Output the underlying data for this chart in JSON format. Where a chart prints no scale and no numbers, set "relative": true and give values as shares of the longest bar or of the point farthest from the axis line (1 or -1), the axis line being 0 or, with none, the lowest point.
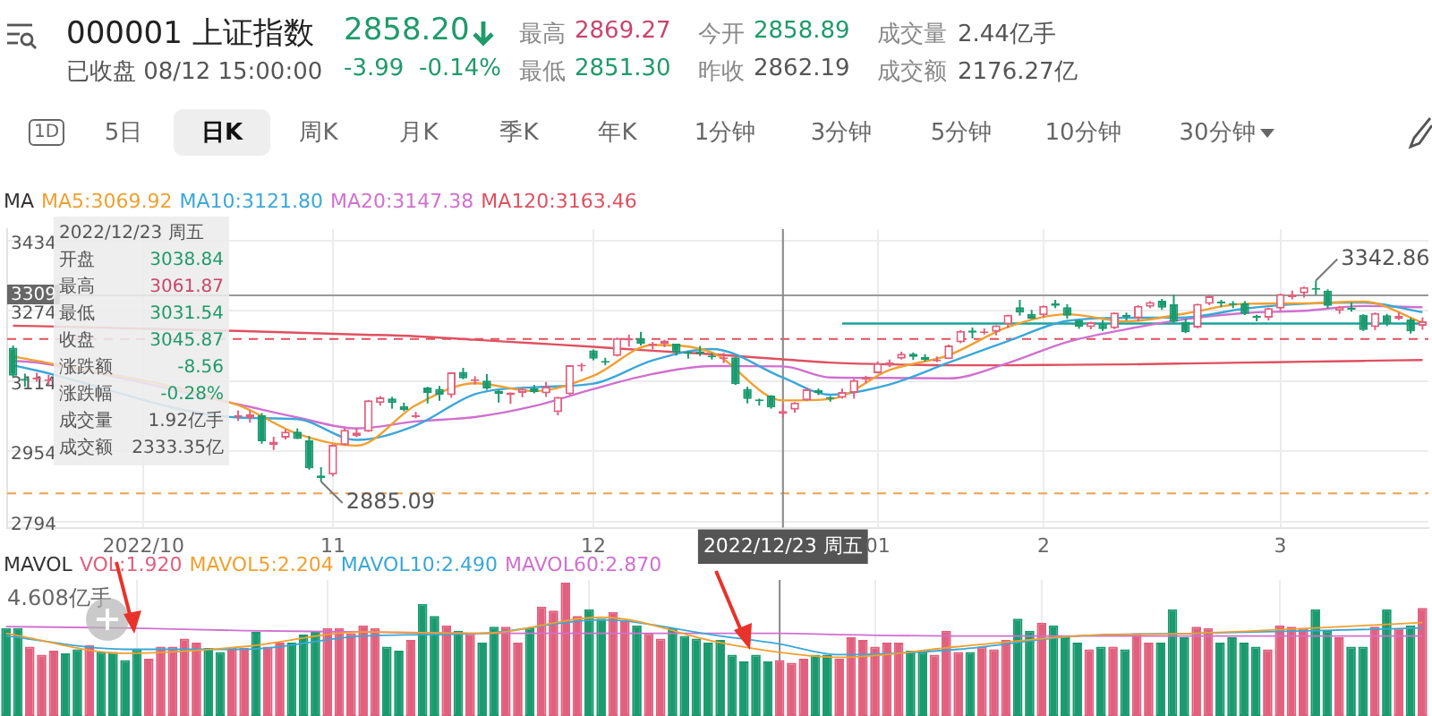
{
  "chart_data": [
    {
      "type": "other",
      "title": "000001 上证指数",
      "annotations": [
        "2858.20",
        "已收盘 08/12 15:00:00",
        "-3.99",
        "-0.14%",
        "最高",
        "2869.27",
        "最低",
        "2851.30",
        "今开",
        "2858.89",
        "昨收",
        "2862.19",
        "成交量",
        "2.44亿手",
        "成交额",
        "2176.27亿",
        "1D",
        "5日",
        "日K",
        "周K",
        "月K",
        "季K",
        "年K",
        "1分钟",
        "3分钟",
        "5分钟",
        "10分钟",
        "30分钟"
      ]
    },
    {
      "type": "candlestick",
      "legend_title": "MA",
      "legend": "top left",
      "grid": true,
      "categories": [
        null,
        null,
        null,
        null,
        null,
        null,
        null,
        null,
        null,
        null,
        null,
        "2022/10",
        null,
        null,
        null,
        null,
        null,
        null,
        null,
        null,
        null,
        null,
        null,
        null,
        null,
        null,
        null,
        "11",
        null,
        null,
        null,
        null,
        null,
        null,
        null,
        null,
        null,
        null,
        null,
        null,
        null,
        null,
        null,
        null,
        null,
        null,
        null,
        null,
        null,
        "12",
        null,
        null,
        null,
        null,
        null,
        null,
        null,
        null,
        null,
        null,
        null,
        null,
        null,
        null,
        null,
        "2022/12/23 周五",
        null,
        null,
        null,
        null,
        null,
        null,
        null,
        "01",
        null,
        null,
        null,
        null,
        null,
        null,
        null,
        null,
        null,
        null,
        null,
        null,
        null,
        "2",
        null,
        null,
        null,
        null,
        null,
        null,
        null,
        null,
        null,
        null,
        null,
        null,
        null,
        null,
        null,
        null,
        null,
        null,
        null,
        "3",
        null,
        null,
        null,
        null,
        null,
        null,
        null,
        null,
        null,
        null,
        null,
        null
      ],
      "ohlc": [
        [
          3190,
          3195,
          3122,
          3126
        ],
        [
          3116,
          3131,
          3101,
          3115
        ],
        [
          3117,
          3133,
          3112,
          3122
        ],
        [
          3114,
          3128,
          3105,
          3117
        ],
        null,
        null,
        null,
        null,
        null,
        null,
        null,
        null,
        null,
        null,
        null,
        null,
        null,
        null,
        null,
        [
          3032,
          3047,
          3023,
          3035
        ],
        [
          3030,
          3047,
          3019,
          3038
        ],
        [
          3036,
          3041,
          2971,
          2977
        ],
        [
          2968,
          2987,
          2957,
          2976
        ],
        [
          2985,
          3004,
          2981,
          2999
        ],
        [
          2999,
          3006,
          2982,
          2982
        ],
        [
          2979,
          2989,
          2912,
          2915
        ],
        [
          2899,
          2918,
          2885.09,
          2893
        ],
        [
          2901,
          2970,
          2897,
          2969
        ],
        [
          2968,
          3006,
          2967,
          3003
        ],
        [
          2989,
          3008,
          2986,
          2997
        ],
        [
          2999,
          3071,
          2998,
          3070
        ],
        [
          3064,
          3080,
          3058,
          3077
        ],
        [
          3074,
          3078,
          3051,
          3064
        ],
        [
          3057,
          3065,
          3045,
          3048
        ],
        [
          3032,
          3044,
          3029,
          3036
        ],
        [
          3099,
          3101,
          3063,
          3087
        ],
        [
          3096,
          3103,
          3069,
          3083
        ],
        [
          3082,
          3134,
          3076,
          3134
        ],
        [
          3135,
          3144,
          3118,
          3120
        ],
        [
          3114,
          3125,
          3106,
          3115
        ],
        [
          3115,
          3130,
          3094,
          3097
        ],
        [
          3092,
          3093,
          3065,
          3085
        ],
        [
          3082,
          3088,
          3062,
          3088
        ],
        [
          3087,
          3100,
          3077,
          3096
        ],
        [
          3097,
          3105,
          3086,
          3089
        ],
        [
          3086,
          3112,
          3078,
          3101
        ],
        [
          3043,
          3078,
          3036,
          3078
        ],
        [
          3084,
          3150,
          3082,
          3150
        ],
        [
          3147,
          3155,
          3136,
          3151
        ],
        [
          3184,
          3186,
          3161,
          3165
        ],
        [
          3160,
          3167,
          3150,
          3156
        ],
        [
          3171,
          3213,
          3170,
          3212
        ],
        [
          3206,
          3220,
          3192,
          3212
        ],
        [
          3212,
          3226,
          3195,
          3199
        ],
        [
          3195,
          3203,
          3186,
          3197
        ],
        [
          3198,
          3208,
          3191,
          3206
        ],
        [
          3199,
          3199,
          3172,
          3179
        ],
        [
          3180,
          3182,
          3165,
          3176
        ],
        [
          3182,
          3194,
          3171,
          3176
        ],
        [
          3172,
          3178,
          3163,
          3168
        ],
        [
          3164,
          3178,
          3155,
          3167
        ],
        [
          3168,
          3168,
          3105,
          3107
        ],
        [
          3096,
          3101,
          3063,
          3073
        ],
        [
          3070,
          3074,
          3058,
          3068
        ],
        [
          3081,
          3082,
          3051,
          3054
        ],
        [
          3038.84,
          3061.87,
          3031.54,
          3045.87
        ],
        [
          3049,
          3066,
          3042,
          3065
        ],
        [
          3070,
          3098,
          3069,
          3095
        ],
        [
          3093,
          3097,
          3082,
          3087
        ],
        [
          3077,
          3080,
          3067,
          3073
        ],
        [
          3076,
          3097,
          3074,
          3089
        ],
        [
          3087,
          3119,
          3074,
          3116
        ],
        [
          3117,
          3126,
          3109,
          3123
        ],
        [
          3132,
          3159,
          3131,
          3155
        ],
        [
          3149,
          3163,
          3146,
          3157
        ],
        [
          3165,
          3181,
          3163,
          3176
        ],
        [
          3176,
          3179,
          3162,
          3169
        ],
        [
          3169,
          3175,
          3159,
          3162
        ],
        [
          3159,
          3170,
          3157,
          3163
        ],
        [
          3164,
          3197,
          3164,
          3195
        ],
        [
          3202,
          3230,
          3200,
          3228
        ],
        [
          3229,
          3236,
          3211,
          3224
        ],
        [
          3223,
          3234,
          3220,
          3225
        ],
        [
          3226,
          3241,
          3218,
          3241
        ],
        [
          3243,
          3265,
          3235,
          3265
        ],
        [
          3282,
          3299,
          3263,
          3270
        ],
        [
          3267,
          3276,
          3255,
          3256
        ],
        [
          3264,
          3286,
          3259,
          3285
        ],
        [
          3291,
          3299,
          3280,
          3285
        ],
        [
          3282,
          3289,
          3256,
          3263
        ],
        [
          3252,
          3253,
          3233,
          3238
        ],
        [
          3237,
          3249,
          3232,
          3248
        ],
        [
          3245,
          3253,
          3228,
          3232
        ],
        [
          3234,
          3270,
          3232,
          3270
        ],
        [
          3265,
          3270,
          3252,
          3260
        ],
        [
          3257,
          3287,
          3250,
          3285
        ],
        [
          3283,
          3296,
          3280,
          3294
        ],
        [
          3297,
          3301,
          3276,
          3281
        ],
        [
          3289,
          3310,
          3246,
          3249
        ],
        [
          3249,
          3256,
          3223,
          3225
        ],
        [
          3236,
          3290,
          3234,
          3290
        ],
        [
          3290,
          3310,
          3287,
          3307
        ],
        [
          3295,
          3299,
          3283,
          3291
        ],
        [
          3289,
          3296,
          3280,
          3287
        ],
        [
          3291,
          3296,
          3264,
          3267
        ],
        [
          3263,
          3265,
          3250,
          3258
        ],
        [
          3258,
          3281,
          3252,
          3280
        ],
        [
          3279,
          3313,
          3274,
          3312
        ],
        [
          3305,
          3320,
          3300,
          3311
        ],
        [
          3314,
          3329,
          3304,
          3328
        ],
        [
          3326,
          3342.86,
          3310,
          3322
        ],
        [
          3320,
          3323,
          3280,
          3285
        ],
        [
          3274,
          3285,
          3267,
          3283
        ],
        [
          3281,
          3293,
          3272,
          3276
        ],
        [
          3265,
          3266,
          3228,
          3230
        ],
        [
          3237,
          3270,
          3230,
          3269
        ],
        [
          3264,
          3267,
          3239,
          3245
        ],
        [
          3255,
          3270,
          3253,
          3263
        ],
        [
          3254,
          3258,
          3222,
          3227
        ],
        [
          3240,
          3259,
          3231,
          3250
        ]
      ],
      "series": [
        {
          "type": "line",
          "name": "MA5:3069.92",
          "color": "#f0a030",
          "values": [
            3170,
            null,
            3160,
            null,
            null,
            null,
            null,
            null,
            null,
            null,
            null,
            null,
            null,
            null,
            null,
            null,
            null,
            null,
            null,
            3059,
            null,
            null,
            null,
            null,
            2994,
            null,
            null,
            null,
            null,
            2967,
            null,
            null,
            null,
            null,
            3059,
            null,
            null,
            null,
            null,
            3109,
            null,
            null,
            null,
            null,
            3091,
            null,
            null,
            null,
            null,
            3126,
            null,
            null,
            null,
            null,
            3196,
            null,
            null,
            null,
            null,
            3179,
            null,
            null,
            null,
            null,
            null,
            3069.92,
            null,
            null,
            null,
            3073,
            null,
            null,
            null,
            null,
            3139,
            null,
            null,
            null,
            null,
            3173,
            null,
            null,
            null,
            null,
            3237,
            null,
            null,
            null,
            null,
            3266,
            null,
            null,
            null,
            null,
            3250,
            null,
            null,
            null,
            null,
            3268,
            null,
            null,
            null,
            null,
            3290,
            null,
            null,
            null,
            null,
            3291,
            null,
            null,
            null,
            null,
            3295,
            null,
            null,
            null,
            null,
            3247
          ]
        },
        {
          "type": "line",
          "name": "MA10:3121.80",
          "color": "#3aa7d8",
          "values": [
            3150,
            null,
            3138,
            null,
            null,
            null,
            null,
            null,
            null,
            null,
            null,
            null,
            null,
            null,
            null,
            null,
            null,
            null,
            null,
            3031,
            null,
            null,
            null,
            null,
            3027,
            null,
            null,
            null,
            null,
            2980,
            null,
            null,
            null,
            null,
            3013,
            null,
            null,
            null,
            null,
            3084,
            null,
            null,
            null,
            null,
            3100,
            null,
            null,
            null,
            null,
            3108,
            null,
            null,
            null,
            null,
            3161,
            null,
            null,
            null,
            null,
            3187,
            null,
            null,
            null,
            null,
            null,
            3121.8,
            null,
            null,
            null,
            3083,
            null,
            null,
            null,
            null,
            3106,
            null,
            null,
            null,
            null,
            3156,
            null,
            null,
            null,
            null,
            3205,
            null,
            null,
            null,
            null,
            3251,
            null,
            null,
            null,
            null,
            3258,
            null,
            null,
            null,
            null,
            3259,
            null,
            null,
            null,
            null,
            3279,
            null,
            null,
            null,
            null,
            3290,
            null,
            null,
            null,
            null,
            3293,
            null,
            null,
            null,
            null,
            3271
          ]
        },
        {
          "type": "line",
          "name": "MA20:3147.38",
          "color": "#d070d0",
          "values": [
            3160,
            null,
            3156,
            null,
            null,
            null,
            null,
            null,
            null,
            null,
            null,
            null,
            null,
            null,
            null,
            null,
            null,
            null,
            null,
            3061,
            null,
            null,
            null,
            null,
            3031,
            null,
            null,
            null,
            null,
            3006,
            null,
            null,
            null,
            null,
            3022,
            null,
            null,
            null,
            null,
            3032,
            null,
            null,
            null,
            null,
            3057,
            null,
            null,
            null,
            null,
            3096,
            null,
            null,
            null,
            null,
            3130,
            null,
            null,
            null,
            null,
            3148,
            null,
            null,
            null,
            null,
            null,
            3147.38,
            null,
            null,
            null,
            3122,
            null,
            null,
            null,
            null,
            3121,
            null,
            null,
            null,
            null,
            3120,
            null,
            null,
            null,
            null,
            3155,
            null,
            null,
            null,
            null,
            3203,
            null,
            null,
            null,
            null,
            3232,
            null,
            null,
            null,
            null,
            3255,
            null,
            null,
            null,
            null,
            3269,
            null,
            null,
            null,
            null,
            3274,
            null,
            null,
            null,
            null,
            3285,
            null,
            null,
            null,
            null,
            3282
          ]
        },
        {
          "type": "line",
          "name": "MA120:3163.46",
          "color": "#e05060",
          "values": [
            3240,
            null,
            3239,
            null,
            null,
            null,
            null,
            null,
            null,
            null,
            null,
            null,
            null,
            null,
            null,
            null,
            null,
            null,
            null,
            3228,
            null,
            null,
            null,
            null,
            3224,
            null,
            null,
            null,
            null,
            3220,
            null,
            null,
            null,
            null,
            3216,
            null,
            null,
            null,
            null,
            3208,
            null,
            null,
            null,
            null,
            3200,
            null,
            null,
            null,
            null,
            3192,
            null,
            null,
            null,
            null,
            3183,
            null,
            null,
            null,
            null,
            3175,
            null,
            null,
            null,
            null,
            null,
            3163.46,
            null,
            null,
            null,
            3156,
            null,
            null,
            null,
            null,
            3152,
            null,
            null,
            null,
            null,
            3150,
            null,
            null,
            null,
            null,
            3150,
            null,
            null,
            null,
            null,
            3151,
            null,
            null,
            null,
            null,
            3152,
            null,
            null,
            null,
            null,
            3154,
            null,
            null,
            null,
            null,
            3156,
            null,
            null,
            null,
            null,
            3158,
            null,
            null,
            null,
            null,
            3160,
            null,
            null,
            null,
            null,
            3162
          ]
        },
        {
          "type": "line",
          "color": "#1aa39a",
          "values": [
            null,
            null,
            null,
            null,
            null,
            null,
            null,
            null,
            null,
            null,
            null,
            null,
            null,
            null,
            null,
            null,
            null,
            null,
            null,
            null,
            null,
            null,
            null,
            null,
            null,
            null,
            null,
            null,
            null,
            null,
            null,
            null,
            null,
            null,
            null,
            null,
            null,
            null,
            null,
            null,
            null,
            null,
            null,
            null,
            null,
            null,
            null,
            null,
            null,
            null,
            null,
            null,
            null,
            null,
            null,
            null,
            null,
            null,
            null,
            null,
            null,
            null,
            null,
            null,
            null,
            null,
            null,
            null,
            null,
            null,
            3245,
            null,
            null,
            null,
            null,
            null,
            null,
            null,
            null,
            null,
            null,
            null,
            null,
            null,
            null,
            null,
            null,
            null,
            null,
            null,
            null,
            null,
            null,
            null,
            null,
            null,
            null,
            null,
            null,
            null,
            null,
            null,
            null,
            null,
            null,
            null,
            null,
            null,
            null,
            null,
            null,
            null,
            null,
            null,
            null,
            null,
            null,
            null,
            null,
            3245
          ]
        }
      ],
      "ylim": [
        2780,
        3460
      ],
      "yticks": [
        2794,
        2954,
        3114,
        3274,
        3434
      ],
      "ref_lines": [
        {
          "axis": "y",
          "value": 3309,
          "label": "3309",
          "color": "#999999"
        },
        {
          "axis": "y",
          "value": 3210,
          "color": "#e05060",
          "line_style": "dashed"
        },
        {
          "axis": "y",
          "value": 2858,
          "color": "#f0a050",
          "line_style": "dashed"
        },
        {
          "axis": "x",
          "value": "2022/12/23 周五",
          "color": "#888888"
        }
      ],
      "annotations": [
        "2022/12/23 周五",
        "开盘",
        "3038.84",
        "最高",
        "3061.87",
        "最低",
        "3031.54",
        "收盘",
        "3045.87",
        "涨跌额",
        "-8.56",
        "涨跌幅",
        "-0.28%",
        "成交量",
        "1.92亿手",
        "成交额",
        "2333.35亿",
        "3342.86",
        "2885.09"
      ]
    },
    {
      "type": "bar",
      "legend_title": "MAVOL",
      "legend": "top left",
      "relative": true,
      "grid": "x",
      "tick_labels": false,
      "categories": [
        null,
        null,
        null,
        null,
        null,
        null,
        null,
        null,
        null,
        null,
        null,
        "2022/10",
        null,
        null,
        null,
        null,
        null,
        null,
        null,
        null,
        null,
        null,
        null,
        null,
        null,
        null,
        null,
        "11",
        null,
        null,
        null,
        null,
        null,
        null,
        null,
        null,
        null,
        null,
        null,
        null,
        null,
        null,
        null,
        null,
        null,
        null,
        null,
        null,
        null,
        "12",
        null,
        null,
        null,
        null,
        null,
        null,
        null,
        null,
        null,
        null,
        null,
        null,
        null,
        null,
        null,
        "2022/12/23 周五",
        null,
        null,
        null,
        null,
        null,
        null,
        null,
        "01",
        null,
        null,
        null,
        null,
        null,
        null,
        null,
        null,
        null,
        null,
        null,
        null,
        null,
        "2",
        null,
        null,
        null,
        null,
        null,
        null,
        null,
        null,
        null,
        null,
        null,
        null,
        null,
        null,
        null,
        null,
        null,
        null,
        null,
        "3",
        null,
        null,
        null,
        null,
        null,
        null,
        null,
        null,
        null,
        null,
        null,
        null
      ],
      "series": [
        {
          "type": "bar",
          "name": "VOL:1.920",
          "color": "#e0607e",
          "values": [
            0.66,
            0.66,
            0.52,
            0.46,
            0.49,
            0.47,
            0.5,
            0.53,
            0.48,
            0.48,
            0.42,
            0.5,
            0.43,
            0.52,
            0.52,
            0.58,
            0.55,
            0.51,
            0.48,
            0.51,
            0.51,
            0.63,
            0.52,
            0.55,
            0.55,
            0.61,
            0.63,
            0.66,
            0.66,
            0.62,
            0.68,
            0.66,
            0.52,
            0.49,
            0.57,
            0.84,
            0.75,
            0.68,
            0.64,
            0.62,
            0.55,
            0.67,
            0.67,
            0.55,
            0.66,
            0.82,
            0.79,
            1,
            0.75,
            0.8,
            0.73,
            0.78,
            0.72,
            0.68,
            0.62,
            0.58,
            0.66,
            0.6,
            0.58,
            0.55,
            0.57,
            0.46,
            0.41,
            0.46,
            0.41,
            0.42,
            0.4,
            0.43,
            0.46,
            0.46,
            0.43,
            0.59,
            0.57,
            0.52,
            0.55,
            0.55,
            0.49,
            0.48,
            0.46,
            0.64,
            0.48,
            0.48,
            0.52,
            0.5,
            0.57,
            0.73,
            0.64,
            0.7,
            0.68,
            0.59,
            0.55,
            0.5,
            0.52,
            0.52,
            0.5,
            0.62,
            0.55,
            0.55,
            0.8,
            0.59,
            0.67,
            0.66,
            0.55,
            0.59,
            0.55,
            0.52,
            0.5,
            0.68,
            0.67,
            0.66,
            0.8,
            0.64,
            0.59,
            0.52,
            0.52,
            0.67,
            0.8,
            0.66,
            0.68,
            0.81
          ],
          "colors": [
            "#1a9a6e",
            "#1a9a6e",
            "#e0607e",
            "#e0607e",
            "#e0607e",
            "#1a9a6e",
            "#1a9a6e",
            "#e0607e",
            "#1a9a6e",
            "#1a9a6e",
            "#1a9a6e",
            "#1a9a6e",
            "#e0607e",
            "#e0607e",
            "#e0607e",
            "#e0607e",
            "#e0607e",
            "#1a9a6e",
            "#1a9a6e",
            "#e0607e",
            "#e0607e",
            "#1a9a6e",
            "#e0607e",
            "#e0607e",
            "#1a9a6e",
            "#1a9a6e",
            "#1a9a6e",
            "#e0607e",
            "#e0607e",
            "#e0607e",
            "#e0607e",
            "#e0607e",
            "#1a9a6e",
            "#1a9a6e",
            "#e0607e",
            "#1a9a6e",
            "#1a9a6e",
            "#e0607e",
            "#1a9a6e",
            "#e0607e",
            "#1a9a6e",
            "#1a9a6e",
            "#e0607e",
            "#e0607e",
            "#1a9a6e",
            "#e0607e",
            "#e0607e",
            "#e0607e",
            "#e0607e",
            "#1a9a6e",
            "#1a9a6e",
            "#e0607e",
            "#e0607e",
            "#1a9a6e",
            "#e0607e",
            "#e0607e",
            "#1a9a6e",
            "#1a9a6e",
            "#1a9a6e",
            "#1a9a6e",
            "#1a9a6e",
            "#1a9a6e",
            "#1a9a6e",
            "#1a9a6e",
            "#1a9a6e",
            "#e0607e",
            "#e0607e",
            "#e0607e",
            "#1a9a6e",
            "#1a9a6e",
            "#e0607e",
            "#e0607e",
            "#e0607e",
            "#e0607e",
            "#e0607e",
            "#e0607e",
            "#1a9a6e",
            "#1a9a6e",
            "#e0607e",
            "#e0607e",
            "#e0607e",
            "#1a9a6e",
            "#e0607e",
            "#e0607e",
            "#e0607e",
            "#1a9a6e",
            "#1a9a6e",
            "#e0607e",
            "#1a9a6e",
            "#1a9a6e",
            "#1a9a6e",
            "#e0607e",
            "#1a9a6e",
            "#e0607e",
            "#1a9a6e",
            "#e0607e",
            "#e0607e",
            "#1a9a6e",
            "#1a9a6e",
            "#1a9a6e",
            "#e0607e",
            "#e0607e",
            "#1a9a6e",
            "#1a9a6e",
            "#1a9a6e",
            "#1a9a6e",
            "#e0607e",
            "#e0607e",
            "#e0607e",
            "#e0607e",
            "#1a9a6e",
            "#1a9a6e",
            "#e0607e",
            "#1a9a6e",
            "#1a9a6e",
            "#e0607e",
            "#1a9a6e",
            "#e0607e",
            "#1a9a6e",
            "#e0607e"
          ]
        },
        {
          "type": "line",
          "name": "MAVOL5:2.204",
          "color": "#f0a030",
          "values": [
            0.62,
            null,
            null,
            null,
            null,
            null,
            null,
            null,
            null,
            null,
            0.47,
            null,
            null,
            null,
            null,
            null,
            null,
            null,
            null,
            null,
            0.52,
            null,
            null,
            null,
            null,
            null,
            null,
            null,
            null,
            null,
            0.63,
            null,
            null,
            null,
            null,
            null,
            null,
            null,
            null,
            null,
            0.62,
            null,
            null,
            null,
            null,
            null,
            null,
            null,
            null,
            null,
            0.74,
            null,
            null,
            null,
            null,
            null,
            null,
            null,
            null,
            null,
            0.55,
            null,
            null,
            null,
            null,
            0.478,
            null,
            null,
            null,
            null,
            0.44,
            null,
            null,
            null,
            null,
            null,
            null,
            null,
            null,
            null,
            0.52,
            null,
            null,
            null,
            null,
            null,
            null,
            null,
            null,
            null,
            0.6,
            null,
            null,
            null,
            null,
            null,
            null,
            null,
            null,
            null,
            0.62,
            null,
            null,
            null,
            null,
            null,
            null,
            null,
            null,
            null,
            0.66,
            null,
            null,
            null,
            null,
            null,
            null,
            null,
            null,
            0.7
          ]
        },
        {
          "type": "line",
          "name": "MAVOL10:2.490",
          "color": "#3aa7d8",
          "values": [
            0.6,
            null,
            null,
            null,
            null,
            null,
            null,
            null,
            null,
            null,
            0.5,
            null,
            null,
            null,
            null,
            null,
            null,
            null,
            null,
            null,
            0.5,
            null,
            null,
            null,
            null,
            null,
            null,
            null,
            null,
            null,
            0.6,
            null,
            null,
            null,
            null,
            null,
            null,
            null,
            null,
            null,
            0.62,
            null,
            null,
            null,
            null,
            null,
            null,
            null,
            null,
            null,
            0.72,
            null,
            null,
            null,
            null,
            null,
            null,
            null,
            null,
            null,
            0.6,
            null,
            null,
            null,
            null,
            0.54,
            null,
            null,
            null,
            null,
            0.46,
            null,
            null,
            null,
            null,
            null,
            null,
            null,
            null,
            null,
            0.5,
            null,
            null,
            null,
            null,
            null,
            null,
            null,
            null,
            null,
            0.6,
            null,
            null,
            null,
            null,
            null,
            null,
            null,
            null,
            null,
            0.62,
            null,
            null,
            null,
            null,
            null,
            null,
            null,
            null,
            null,
            0.64,
            null,
            null,
            null,
            null,
            null,
            null,
            null,
            null,
            0.66
          ]
        },
        {
          "type": "line",
          "name": "MAVOL60:2.870",
          "color": "#d070d0",
          "values": [
            0.67,
            null,
            null,
            null,
            null,
            null,
            null,
            null,
            null,
            null,
            0.66,
            null,
            null,
            null,
            null,
            null,
            null,
            null,
            null,
            null,
            0.64,
            null,
            null,
            null,
            null,
            null,
            null,
            null,
            null,
            null,
            0.63,
            null,
            null,
            null,
            null,
            null,
            null,
            null,
            null,
            null,
            0.62,
            null,
            null,
            null,
            null,
            null,
            null,
            null,
            null,
            null,
            0.62,
            null,
            null,
            null,
            null,
            null,
            null,
            null,
            null,
            null,
            0.62,
            null,
            null,
            null,
            null,
            0.62,
            null,
            null,
            null,
            null,
            0.61,
            null,
            null,
            null,
            null,
            null,
            null,
            null,
            null,
            null,
            0.6,
            null,
            null,
            null,
            null,
            null,
            null,
            null,
            null,
            null,
            0.6,
            null,
            null,
            null,
            null,
            null,
            null,
            null,
            null,
            null,
            0.6,
            null,
            null,
            null,
            null,
            null,
            null,
            null,
            null,
            null,
            0.6,
            null,
            null,
            null,
            null,
            null,
            null,
            null,
            null,
            0.6
          ]
        }
      ],
      "ref_lines": [
        {
          "axis": "x",
          "value": "2022/12/23 周五",
          "color": "#888888"
        }
      ],
      "annotations": [
        "4.608亿手"
      ]
    }
  ]
}
